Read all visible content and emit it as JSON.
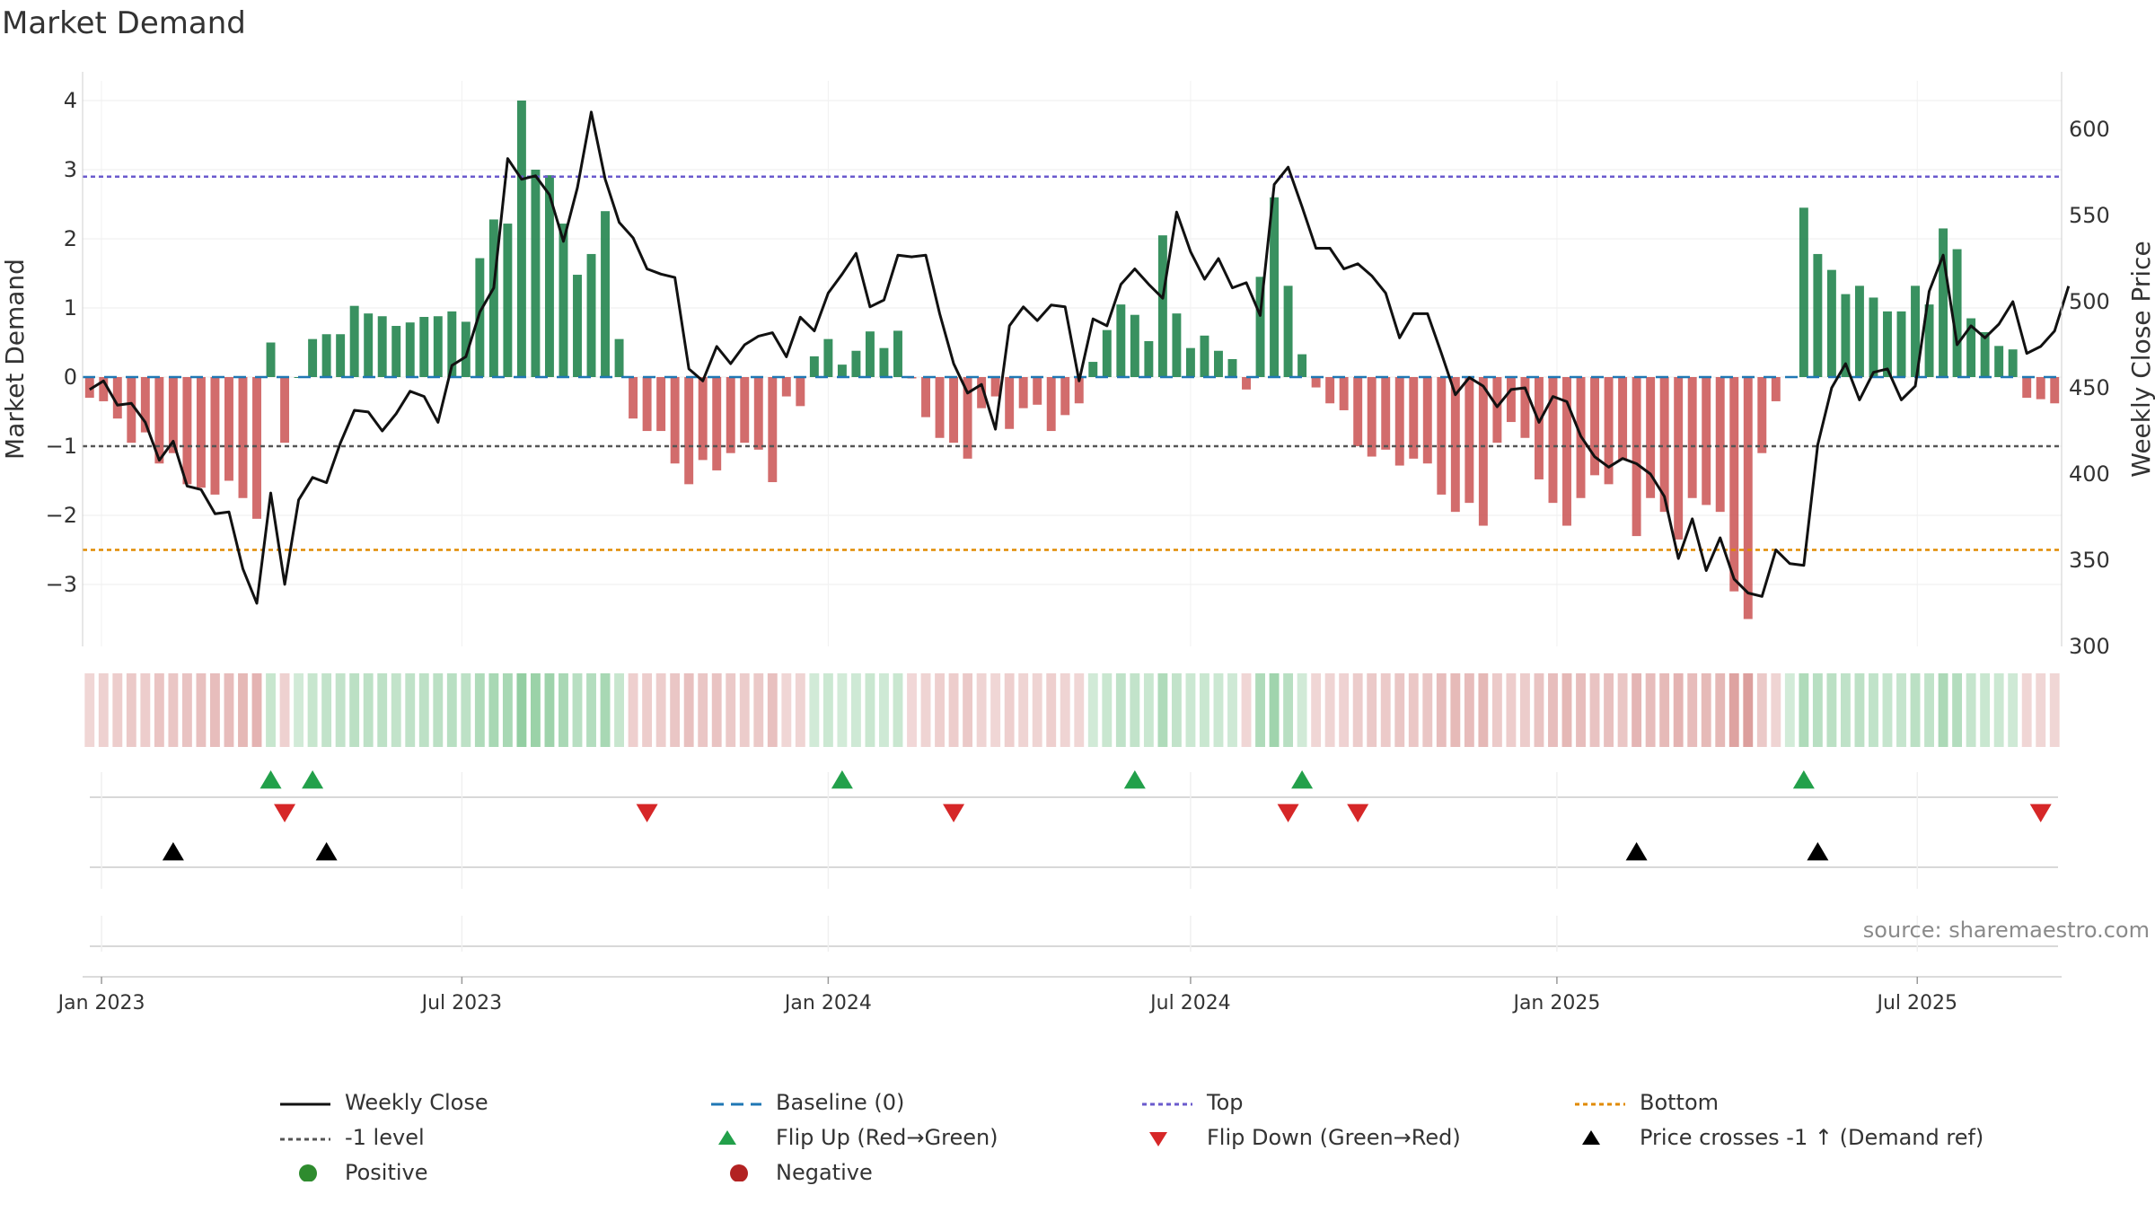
{
  "title": "Market Demand",
  "source": "source: sharemaestro.com",
  "colors": {
    "positive": "#2e8b57",
    "negative": "#cd5c5c",
    "close": "#111111",
    "baseline": "#1f77b4",
    "top": "#6a5acd",
    "bottom": "#e08a00",
    "minus1": "#555555",
    "flip_up": "#22a04a",
    "flip_down": "#d62728",
    "cross": "#000000"
  },
  "chart_data": {
    "type": "bar+line",
    "title": "Market Demand",
    "ylabel_left": "Market Demand",
    "ylabel_right": "Weekly Close Price",
    "ylim_left": [
      -3.9,
      4.2
    ],
    "ylim_right": [
      300,
      625
    ],
    "yticks_left": [
      "−3",
      "−2",
      "−1",
      "0",
      "1",
      "2",
      "3",
      "4"
    ],
    "yticks_right": [
      "300",
      "350",
      "400",
      "450",
      "500",
      "550",
      "600"
    ],
    "xticks": [
      "Jan 2023",
      "Jul 2023",
      "Jan 2024",
      "Jul 2024",
      "Jan 2025",
      "Jul 2025"
    ],
    "start": "2022-12-26",
    "x_range_weeks": [
      -0.5,
      141.5
    ],
    "reference_lines": {
      "baseline": 0,
      "minus1": -1,
      "top": 2.9,
      "bottom": -2.5
    },
    "demand": [
      -0.3,
      -0.35,
      -0.6,
      -0.95,
      -0.8,
      -1.25,
      -1.1,
      -1.55,
      -1.6,
      -1.7,
      -1.5,
      -1.75,
      -2.05,
      0.5,
      -0.95,
      0,
      0.55,
      0.62,
      0.62,
      1.03,
      0.92,
      0.88,
      0.74,
      0.79,
      0.87,
      0.88,
      0.95,
      0.8,
      1.72,
      2.28,
      2.22,
      4.0,
      3.0,
      2.92,
      2.22,
      1.48,
      1.78,
      2.4,
      0.55,
      -0.6,
      -0.78,
      -0.78,
      -1.25,
      -1.55,
      -1.2,
      -1.35,
      -1.1,
      -0.95,
      -1.05,
      -1.52,
      -0.28,
      -0.42,
      0.3,
      0.55,
      0.18,
      0.38,
      0.66,
      0.42,
      0.67,
      -0.02,
      -0.58,
      -0.88,
      -0.95,
      -1.18,
      -0.45,
      -0.28,
      -0.75,
      -0.45,
      -0.4,
      -0.78,
      -0.55,
      -0.38,
      0.22,
      0.68,
      1.05,
      0.9,
      0.52,
      2.05,
      0.92,
      0.42,
      0.6,
      0.38,
      0.26,
      -0.18,
      1.45,
      2.6,
      1.32,
      0.33,
      -0.15,
      -0.38,
      -0.48,
      -1.0,
      -1.15,
      -1.05,
      -1.28,
      -1.18,
      -1.25,
      -1.7,
      -1.95,
      -1.82,
      -2.15,
      -0.95,
      -0.65,
      -0.88,
      -1.48,
      -1.82,
      -2.15,
      -1.75,
      -1.42,
      -1.55,
      -1.2,
      -2.3,
      -1.75,
      -1.95,
      -2.35,
      -1.75,
      -1.85,
      -1.95,
      -3.1,
      -3.5,
      -1.1,
      -0.35,
      0,
      2.45,
      1.78,
      1.55,
      1.2,
      1.32,
      1.15,
      0.95,
      0.95,
      1.32,
      1.05,
      2.15,
      1.85,
      0.85,
      0.65,
      0.45,
      0.4,
      -0.3,
      -0.32,
      -0.38
    ],
    "weekly_close": [
      449,
      454,
      440,
      441,
      430,
      408,
      419,
      393,
      391,
      377,
      378,
      345,
      325,
      389,
      336,
      385,
      398,
      395,
      418,
      437,
      436,
      425,
      435,
      448,
      445,
      430,
      463,
      468,
      494,
      508,
      583,
      571,
      573,
      562,
      535,
      566,
      610,
      571,
      546,
      537,
      519,
      516,
      514,
      461,
      454,
      474,
      464,
      475,
      480,
      482,
      468,
      491,
      483,
      505,
      516,
      528,
      497,
      501,
      527,
      526,
      527,
      493,
      464,
      447,
      452,
      426,
      486,
      497,
      489,
      498,
      497,
      454,
      490,
      486,
      510,
      519,
      510,
      502,
      552,
      529,
      513,
      525,
      508,
      511,
      492,
      568,
      578,
      555,
      531,
      531,
      519,
      522,
      515,
      505,
      479,
      493,
      493,
      470,
      446,
      456,
      451,
      439,
      449,
      450,
      430,
      445,
      442,
      422,
      410,
      404,
      409,
      406,
      400,
      387,
      351,
      374,
      344,
      363,
      339,
      331,
      329,
      356,
      348,
      347,
      417,
      450,
      464,
      443,
      459,
      461,
      443,
      451,
      506,
      527,
      475,
      486,
      479,
      487,
      500,
      470,
      474,
      483,
      509
    ],
    "heat_intensity": [
      0.2,
      0.25,
      0.3,
      0.35,
      0.3,
      0.4,
      0.38,
      0.42,
      0.45,
      0.48,
      0.5,
      0.55,
      0.6,
      0.3,
      0.25,
      0.2,
      0.3,
      0.35,
      0.35,
      0.42,
      0.4,
      0.4,
      0.35,
      0.38,
      0.4,
      0.42,
      0.45,
      0.4,
      0.55,
      0.62,
      0.62,
      0.9,
      0.75,
      0.72,
      0.6,
      0.45,
      0.5,
      0.62,
      0.3,
      0.28,
      0.3,
      0.3,
      0.38,
      0.45,
      0.38,
      0.42,
      0.35,
      0.32,
      0.35,
      0.45,
      0.2,
      0.22,
      0.2,
      0.25,
      0.18,
      0.22,
      0.28,
      0.22,
      0.28,
      0.18,
      0.22,
      0.28,
      0.3,
      0.35,
      0.22,
      0.2,
      0.28,
      0.22,
      0.22,
      0.28,
      0.22,
      0.2,
      0.2,
      0.28,
      0.38,
      0.35,
      0.28,
      0.55,
      0.35,
      0.25,
      0.28,
      0.25,
      0.22,
      0.2,
      0.55,
      0.7,
      0.45,
      0.2,
      0.2,
      0.22,
      0.24,
      0.32,
      0.35,
      0.33,
      0.38,
      0.36,
      0.38,
      0.48,
      0.52,
      0.5,
      0.55,
      0.33,
      0.3,
      0.32,
      0.42,
      0.48,
      0.55,
      0.48,
      0.42,
      0.45,
      0.38,
      0.58,
      0.5,
      0.52,
      0.6,
      0.5,
      0.52,
      0.55,
      0.78,
      0.85,
      0.35,
      0.22,
      0.18,
      0.55,
      0.45,
      0.42,
      0.38,
      0.4,
      0.36,
      0.32,
      0.32,
      0.42,
      0.36,
      0.58,
      0.5,
      0.32,
      0.28,
      0.25,
      0.22,
      0.2,
      0.2,
      0.2
    ],
    "flip_up_weeks": [
      13,
      16,
      54,
      75,
      87,
      123
    ],
    "flip_down_weeks": [
      14,
      40,
      62,
      86,
      91,
      140
    ],
    "price_cross_weeks": [
      6,
      17,
      111,
      124
    ],
    "legend": [
      "Weekly Close",
      "Baseline (0)",
      "Top",
      "Bottom",
      "-1 level",
      "Flip Up (Red→Green)",
      "Flip Down (Green→Red)",
      "Price crosses -1 ↑ (Demand ref)",
      "Positive",
      "Negative"
    ]
  }
}
